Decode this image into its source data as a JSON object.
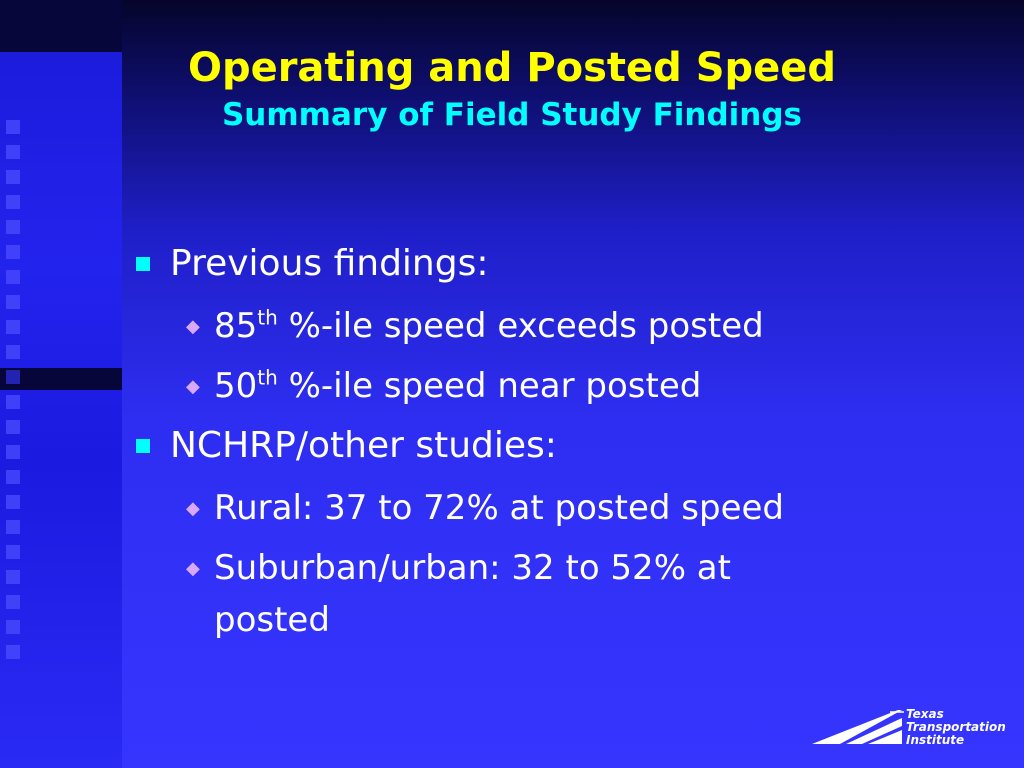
{
  "slide": {
    "title": "Operating and Posted Speed",
    "subtitle": "Summary of Field Study Findings"
  },
  "bullets": [
    {
      "label": "Previous findings:",
      "sub": [
        {
          "num": "85",
          "sup": "th",
          "rest": " %-ile speed exceeds posted"
        },
        {
          "num": "50",
          "sup": "th",
          "rest": " %-ile speed near posted"
        }
      ]
    },
    {
      "label": "NCHRP/other studies:",
      "sub": [
        {
          "text": "Rural: 37 to 72% at posted speed"
        },
        {
          "text": "Suburban/urban: 32 to 52% at posted"
        }
      ]
    }
  ],
  "logo": {
    "line1": "Texas",
    "line2": "Transportation",
    "line3": "Institute"
  },
  "colors": {
    "title": "#ffff00",
    "subtitle": "#00ffff",
    "bullet_l1": "#00ffff",
    "bullet_l2": "#d8a8ff",
    "background": "#3535ff"
  }
}
